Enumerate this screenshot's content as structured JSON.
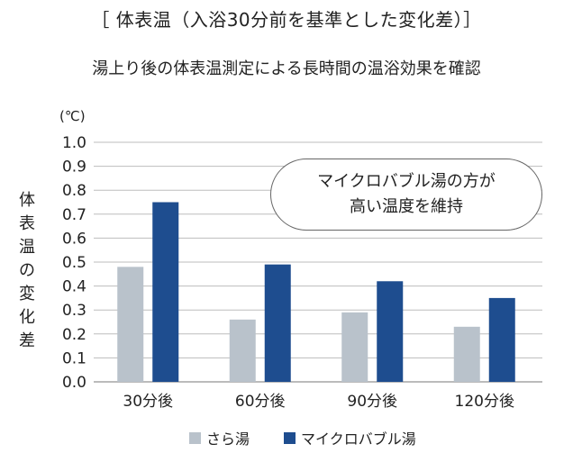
{
  "header": {
    "title": "［ 体表温（入浴30分前を基準とした変化差）］",
    "subtitle": "湯上り後の体表温測定による長時間の温浴効果を確認"
  },
  "callout": {
    "text": "マイクロバブル湯の方が\n高い温度を維持"
  },
  "colors": {
    "sara": "#b9c2cb",
    "micro": "#1e4d8f",
    "grid": "#bdbdbd"
  },
  "chart_data": {
    "type": "bar",
    "unit_label": "(℃)",
    "ylabel": "体表温の変化差",
    "xlabel": "",
    "ylim": [
      0,
      1.0
    ],
    "yticks": [
      "1.0",
      "0.9",
      "0.8",
      "0.7",
      "0.6",
      "0.5",
      "0.4",
      "0.3",
      "0.2",
      "0.1",
      "0.0"
    ],
    "categories": [
      "30分後",
      "60分後",
      "90分後",
      "120分後"
    ],
    "series": [
      {
        "name": "さら湯",
        "values": [
          0.48,
          0.26,
          0.29,
          0.23
        ]
      },
      {
        "name": "マイクロバブル湯",
        "values": [
          0.75,
          0.49,
          0.42,
          0.35
        ]
      }
    ],
    "grid": true,
    "legend": "bottom"
  }
}
